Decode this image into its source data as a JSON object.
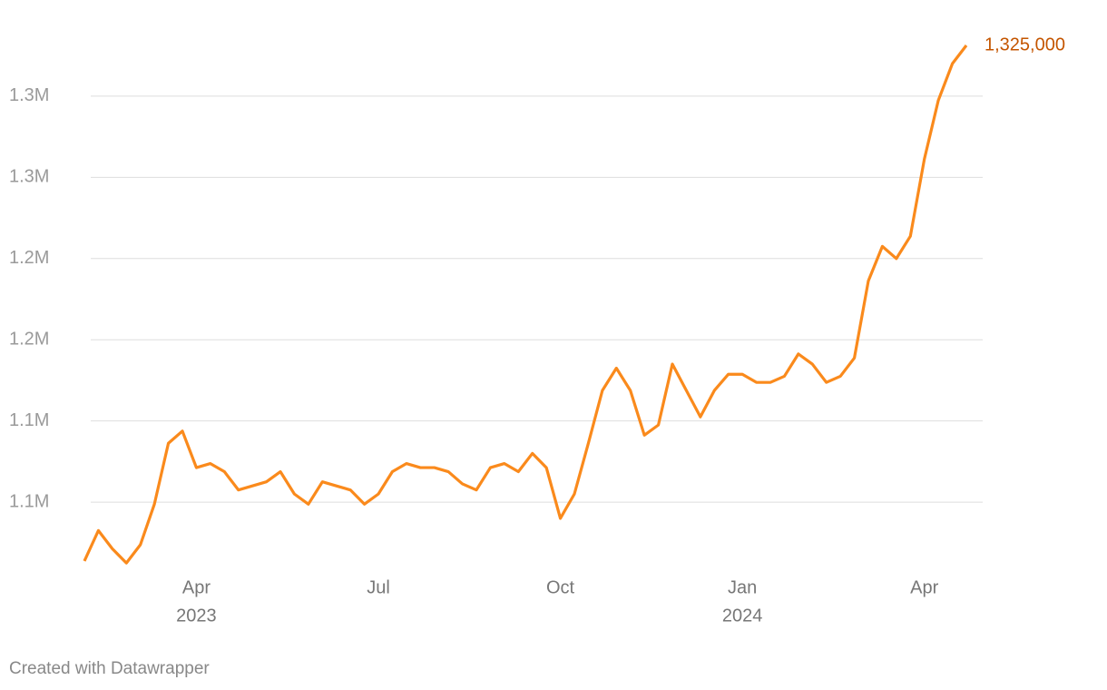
{
  "chart_data": {
    "type": "line",
    "categories": [
      null,
      null,
      null,
      null,
      null,
      null,
      null,
      null,
      [
        "Apr",
        "2023"
      ],
      null,
      null,
      null,
      null,
      null,
      null,
      null,
      null,
      null,
      null,
      null,
      null,
      [
        "Jul"
      ],
      null,
      null,
      null,
      null,
      null,
      null,
      null,
      null,
      null,
      null,
      null,
      null,
      [
        "Oct"
      ],
      null,
      null,
      null,
      null,
      null,
      null,
      null,
      null,
      null,
      null,
      null,
      null,
      [
        "Jan",
        "2024"
      ],
      null,
      null,
      null,
      null,
      null,
      null,
      null,
      null,
      null,
      null,
      null,
      null,
      [
        "Apr"
      ],
      null,
      null,
      null
    ],
    "series": [
      {
        "color": "#fa8a1c",
        "values": [
          1071000,
          1086000,
          1077000,
          1070000,
          1079000,
          1099000,
          1129000,
          1135000,
          1117000,
          1119000,
          1115000,
          1106000,
          1108000,
          1110000,
          1115000,
          1104000,
          1099000,
          1110000,
          1108000,
          1106000,
          1099000,
          1104000,
          1115000,
          1119000,
          1117000,
          1117000,
          1115000,
          1109000,
          1106000,
          1117000,
          1119000,
          1115000,
          1124000,
          1117000,
          1092000,
          1104000,
          1129000,
          1155000,
          1166000,
          1155000,
          1133000,
          1138000,
          1168000,
          1155000,
          1142000,
          1155000,
          1163000,
          1163000,
          1159000,
          1159000,
          1162000,
          1173000,
          1168000,
          1159000,
          1162000,
          1171000,
          1209000,
          1226000,
          1220000,
          1231000,
          1269000,
          1298000,
          1316000,
          1325000
        ],
        "end_label": {
          "value": 1325000,
          "label": "1,325,000",
          "color": "#c45500"
        }
      }
    ],
    "ylim": [
      1060000,
      1340000
    ],
    "yticks": [
      {
        "value": 1100000,
        "label": "1.1M"
      },
      {
        "value": 1140000,
        "label": "1.1M"
      },
      {
        "value": 1180000,
        "label": "1.2M"
      },
      {
        "value": 1220000,
        "label": "1.2M"
      },
      {
        "value": 1260000,
        "label": "1.3M"
      },
      {
        "value": 1300000,
        "label": "1.3M"
      }
    ],
    "grid": true,
    "footer": "Created with Datawrapper"
  }
}
